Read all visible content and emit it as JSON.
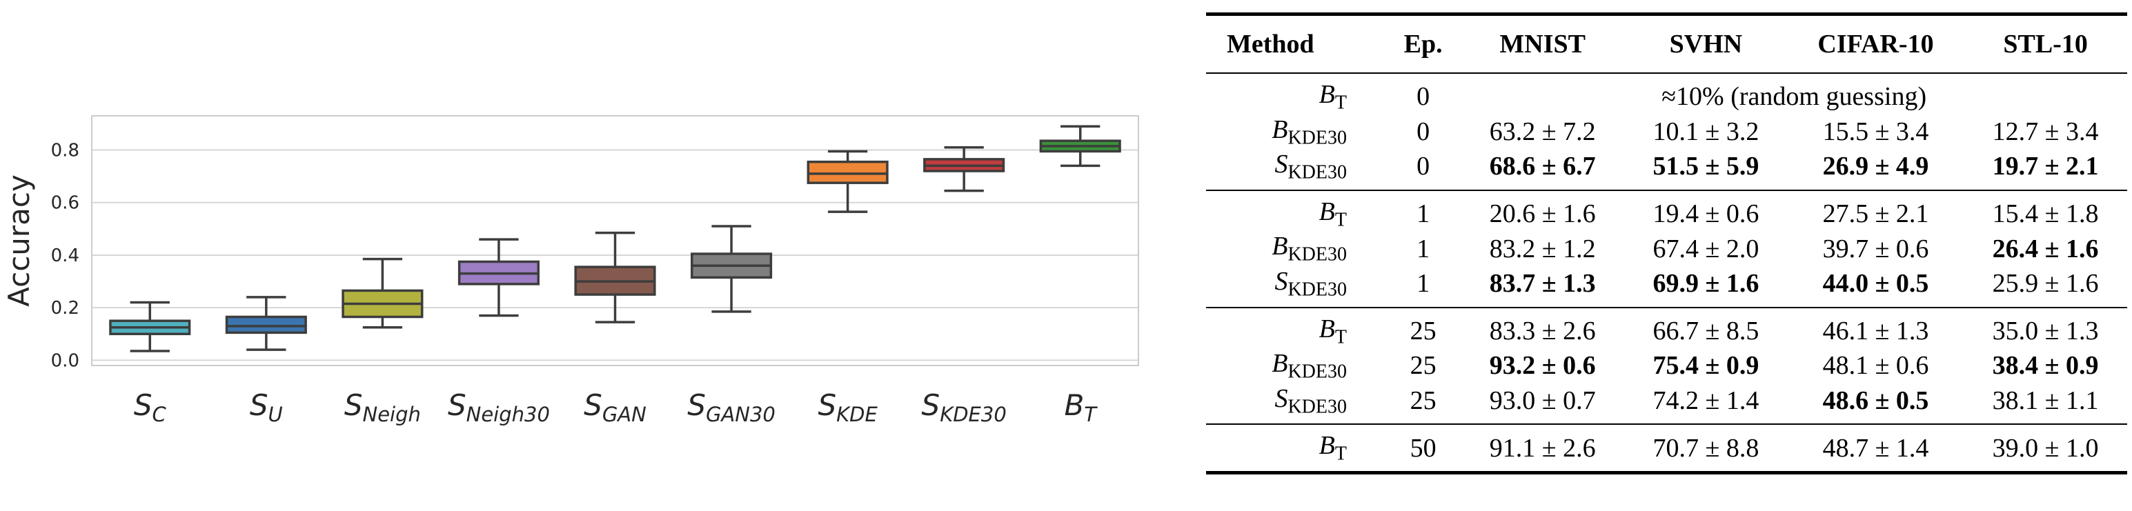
{
  "chart_data": {
    "type": "box",
    "ylabel": "Accuracy",
    "ylim": [
      -0.02,
      0.93
    ],
    "yticks": [
      "0.0",
      "0.2",
      "0.4",
      "0.6",
      "0.8"
    ],
    "grid": true,
    "categories": [
      {
        "base": "S",
        "sub": "C"
      },
      {
        "base": "S",
        "sub": "U"
      },
      {
        "base": "S",
        "sub": "Neigh"
      },
      {
        "base": "S",
        "sub": "Neigh30"
      },
      {
        "base": "S",
        "sub": "GAN"
      },
      {
        "base": "S",
        "sub": "GAN30"
      },
      {
        "base": "S",
        "sub": "KDE"
      },
      {
        "base": "S",
        "sub": "KDE30"
      },
      {
        "base": "B",
        "sub": "T"
      }
    ],
    "boxes": [
      {
        "whislo": 0.035,
        "q1": 0.1,
        "med": 0.125,
        "q3": 0.15,
        "whishi": 0.22,
        "color": "#4fb0bf"
      },
      {
        "whislo": 0.04,
        "q1": 0.105,
        "med": 0.13,
        "q3": 0.165,
        "whishi": 0.24,
        "color": "#3b75af"
      },
      {
        "whislo": 0.125,
        "q1": 0.165,
        "med": 0.215,
        "q3": 0.265,
        "whishi": 0.385,
        "color": "#b2b240"
      },
      {
        "whislo": 0.17,
        "q1": 0.29,
        "med": 0.33,
        "q3": 0.375,
        "whishi": 0.46,
        "color": "#9d7ec4"
      },
      {
        "whislo": 0.145,
        "q1": 0.25,
        "med": 0.3,
        "q3": 0.355,
        "whishi": 0.485,
        "color": "#84594e"
      },
      {
        "whislo": 0.185,
        "q1": 0.315,
        "med": 0.36,
        "q3": 0.405,
        "whishi": 0.51,
        "color": "#7f7f7f"
      },
      {
        "whislo": 0.565,
        "q1": 0.675,
        "med": 0.71,
        "q3": 0.755,
        "whishi": 0.795,
        "color": "#ee8636"
      },
      {
        "whislo": 0.645,
        "q1": 0.72,
        "med": 0.74,
        "q3": 0.765,
        "whishi": 0.81,
        "color": "#c03d3e"
      },
      {
        "whislo": 0.74,
        "q1": 0.795,
        "med": 0.815,
        "q3": 0.835,
        "whishi": 0.89,
        "color": "#3a923a"
      }
    ]
  },
  "table": {
    "headers": [
      "Method",
      "Ep.",
      "MNIST",
      "SVHN",
      "CIFAR-10",
      "STL-10"
    ],
    "random_note": "≈10% (random guessing)",
    "groups": [
      [
        {
          "method": "B",
          "sub": "T",
          "ep": "0",
          "cells": [],
          "bold": []
        },
        {
          "method": "B",
          "sub": "KDE30",
          "ep": "0",
          "cells": [
            "63.2 ± 7.2",
            "10.1 ± 3.2",
            "15.5 ± 3.4",
            "12.7 ± 3.4"
          ],
          "bold": [
            false,
            false,
            false,
            false
          ]
        },
        {
          "method": "S",
          "sub": "KDE30",
          "ep": "0",
          "cells": [
            "68.6 ± 6.7",
            "51.5 ± 5.9",
            "26.9 ± 4.9",
            "19.7 ± 2.1"
          ],
          "bold": [
            true,
            true,
            true,
            true
          ]
        }
      ],
      [
        {
          "method": "B",
          "sub": "T",
          "ep": "1",
          "cells": [
            "20.6 ± 1.6",
            "19.4 ± 0.6",
            "27.5 ± 2.1",
            "15.4 ± 1.8"
          ],
          "bold": [
            false,
            false,
            false,
            false
          ]
        },
        {
          "method": "B",
          "sub": "KDE30",
          "ep": "1",
          "cells": [
            "83.2 ± 1.2",
            "67.4 ± 2.0",
            "39.7 ± 0.6",
            "26.4 ± 1.6"
          ],
          "bold": [
            false,
            false,
            false,
            true
          ]
        },
        {
          "method": "S",
          "sub": "KDE30",
          "ep": "1",
          "cells": [
            "83.7 ± 1.3",
            "69.9 ± 1.6",
            "44.0 ± 0.5",
            "25.9 ± 1.6"
          ],
          "bold": [
            true,
            true,
            true,
            false
          ]
        }
      ],
      [
        {
          "method": "B",
          "sub": "T",
          "ep": "25",
          "cells": [
            "83.3 ± 2.6",
            "66.7 ± 8.5",
            "46.1 ± 1.3",
            "35.0 ± 1.3"
          ],
          "bold": [
            false,
            false,
            false,
            false
          ]
        },
        {
          "method": "B",
          "sub": "KDE30",
          "ep": "25",
          "cells": [
            "93.2 ± 0.6",
            "75.4 ± 0.9",
            "48.1 ± 0.6",
            "38.4 ± 0.9"
          ],
          "bold": [
            true,
            true,
            false,
            true
          ]
        },
        {
          "method": "S",
          "sub": "KDE30",
          "ep": "25",
          "cells": [
            "93.0 ± 0.7",
            "74.2 ± 1.4",
            "48.6 ± 0.5",
            "38.1 ± 1.1"
          ],
          "bold": [
            false,
            false,
            true,
            false
          ]
        }
      ],
      [
        {
          "method": "B",
          "sub": "T",
          "ep": "50",
          "cells": [
            "91.1 ± 2.6",
            "70.7 ± 8.8",
            "48.7 ± 1.4",
            "39.0 ± 1.0"
          ],
          "bold": [
            false,
            false,
            false,
            false
          ]
        }
      ]
    ]
  }
}
